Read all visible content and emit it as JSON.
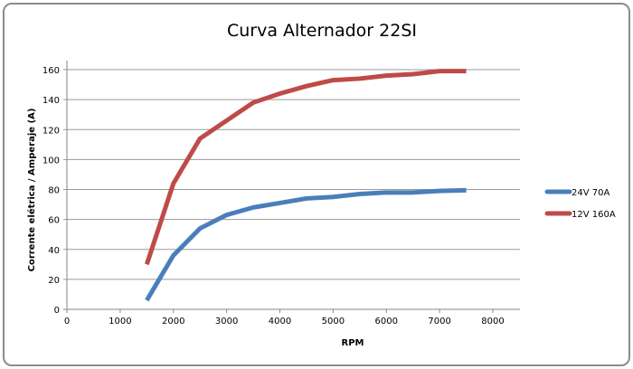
{
  "chart_data": {
    "type": "line",
    "title": "Curva Alternador 22SI",
    "xlabel": "RPM",
    "ylabel": "Corrente elétrica /  Amperaje (A)",
    "xlim": [
      0,
      8000
    ],
    "ylim": [
      0,
      160
    ],
    "xticks": [
      0,
      1000,
      2000,
      3000,
      4000,
      5000,
      6000,
      7000,
      8000
    ],
    "yticks": [
      0,
      20,
      40,
      60,
      80,
      100,
      120,
      140,
      160
    ],
    "grid": "horizontal",
    "legend_position": "right",
    "x": [
      1500,
      2000,
      2500,
      3000,
      3500,
      4000,
      4500,
      5000,
      5500,
      6000,
      6500,
      7000,
      7500
    ],
    "series": [
      {
        "name": "24V 70A",
        "color": "#4a7ebb",
        "values": [
          6,
          36,
          54,
          63,
          68,
          71,
          74,
          75,
          77,
          78,
          78,
          79,
          79.5
        ]
      },
      {
        "name": "12V 160A",
        "color": "#be4b48",
        "values": [
          30,
          84,
          114,
          126,
          138,
          144,
          149,
          153,
          154,
          156,
          157,
          159,
          159
        ]
      }
    ]
  }
}
